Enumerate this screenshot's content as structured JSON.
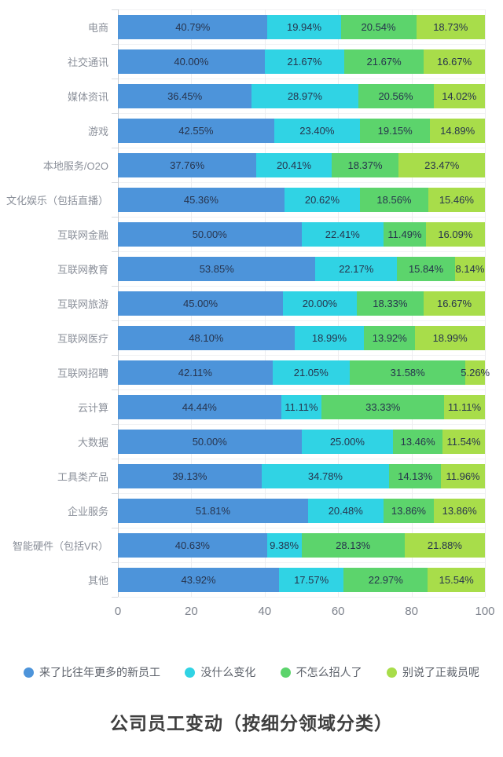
{
  "title": "公司员工变动（按细分领域分类）",
  "chart_data": {
    "type": "bar",
    "orientation": "horizontal",
    "stacked": true,
    "title": "公司员工变动（按细分领域分类）",
    "value_format": "percent_two_decimals",
    "grid": true,
    "legend_position": "bottom",
    "x_axis": {
      "range": [
        0,
        100
      ],
      "ticks": [
        0,
        20,
        40,
        60,
        80,
        100
      ]
    },
    "categories": [
      "电商",
      "社交通讯",
      "媒体资讯",
      "游戏",
      "本地服务/O2O",
      "文化娱乐（包括直播）",
      "互联网金融",
      "互联网教育",
      "互联网旅游",
      "互联网医疗",
      "互联网招聘",
      "云计算",
      "大数据",
      "工具类产品",
      "企业服务",
      "智能硬件（包括VR）",
      "其他"
    ],
    "series": [
      {
        "name": "来了比往年更多的新员工",
        "color": "#4d94da",
        "values": [
          40.79,
          40.0,
          36.45,
          42.55,
          37.76,
          45.36,
          50.0,
          53.85,
          45.0,
          48.1,
          42.11,
          44.44,
          50.0,
          39.13,
          51.81,
          40.63,
          43.92
        ]
      },
      {
        "name": "没什么变化",
        "color": "#30d3e4",
        "values": [
          19.94,
          21.67,
          28.97,
          23.4,
          20.41,
          20.62,
          22.41,
          22.17,
          20.0,
          18.99,
          21.05,
          11.11,
          25.0,
          34.78,
          20.48,
          9.38,
          17.57
        ]
      },
      {
        "name": "不怎么招人了",
        "color": "#5cd46c",
        "values": [
          20.54,
          21.67,
          20.56,
          19.15,
          18.37,
          18.56,
          11.49,
          15.84,
          18.33,
          13.92,
          31.58,
          33.33,
          13.46,
          14.13,
          13.86,
          28.13,
          22.97
        ]
      },
      {
        "name": "别说了正裁员呢",
        "color": "#a8dd4a",
        "values": [
          18.73,
          16.67,
          14.02,
          14.89,
          23.47,
          15.46,
          16.09,
          8.14,
          16.67,
          18.99,
          5.26,
          11.11,
          11.54,
          11.96,
          13.86,
          21.88,
          15.54
        ]
      }
    ]
  },
  "legend": {
    "items": [
      {
        "label": "来了比往年更多的新员工",
        "color": "#4d94da"
      },
      {
        "label": "没什么变化",
        "color": "#30d3e4"
      },
      {
        "label": "不怎么招人了",
        "color": "#5cd46c"
      },
      {
        "label": "别说了正裁员呢",
        "color": "#a8dd4a"
      }
    ]
  }
}
